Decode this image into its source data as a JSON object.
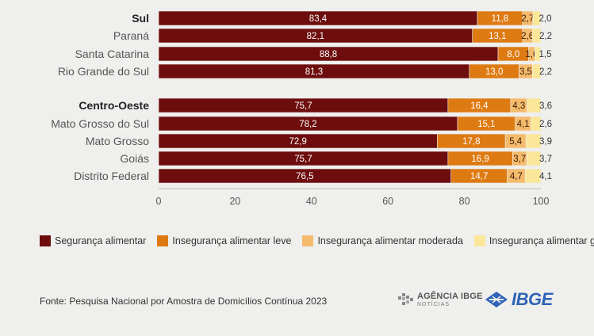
{
  "chart_data": {
    "type": "bar",
    "orientation": "horizontal",
    "stacked": true,
    "xlim": [
      0,
      100
    ],
    "xticks": [
      0,
      20,
      40,
      60,
      80,
      100
    ],
    "grid": false,
    "legend_position": "bottom",
    "series": [
      {
        "name": "Segurança alimentar",
        "color": "#6e0d0d"
      },
      {
        "name": "Insegurança alimentar leve",
        "color": "#de7a12"
      },
      {
        "name": "Insegurança alimentar moderada",
        "color": "#f5bb6d"
      },
      {
        "name": "Insegurança alimentar grave",
        "color": "#fbe79a"
      }
    ],
    "rows": [
      {
        "label": "Sul",
        "bold": true,
        "values": [
          83.4,
          11.8,
          2.7,
          2.0
        ],
        "labels": [
          "83,4",
          "11,8",
          "2,7",
          "2,0"
        ]
      },
      {
        "label": "Paraná",
        "bold": false,
        "values": [
          82.1,
          13.1,
          2.6,
          2.2
        ],
        "labels": [
          "82,1",
          "13,1",
          "2,6",
          "2,2"
        ]
      },
      {
        "label": "Santa Catarina",
        "bold": false,
        "values": [
          88.8,
          8.0,
          1.6,
          1.5
        ],
        "labels": [
          "88,8",
          "8,0",
          "1,6",
          "1,5"
        ]
      },
      {
        "label": "Rio Grande do Sul",
        "bold": false,
        "values": [
          81.3,
          13.0,
          3.5,
          2.2
        ],
        "labels": [
          "81,3",
          "13,0",
          "3,5",
          "2,2"
        ]
      },
      {
        "label": "Centro-Oeste",
        "bold": true,
        "values": [
          75.7,
          16.4,
          4.3,
          3.6
        ],
        "labels": [
          "75,7",
          "16,4",
          "4,3",
          "3,6"
        ]
      },
      {
        "label": "Mato Grosso do Sul",
        "bold": false,
        "values": [
          78.2,
          15.1,
          4.1,
          2.6
        ],
        "labels": [
          "78,2",
          "15,1",
          "4,1",
          "2,6"
        ]
      },
      {
        "label": "Mato Grosso",
        "bold": false,
        "values": [
          72.9,
          17.8,
          5.4,
          3.9
        ],
        "labels": [
          "72,9",
          "17,8",
          "5,4",
          "3,9"
        ]
      },
      {
        "label": "Goiás",
        "bold": false,
        "values": [
          75.7,
          16.9,
          3.7,
          3.7
        ],
        "labels": [
          "75,7",
          "16,9",
          "3,7",
          "3,7"
        ]
      },
      {
        "label": "Distrito Federal",
        "bold": false,
        "values": [
          76.5,
          14.7,
          4.7,
          4.1
        ],
        "labels": [
          "76,5",
          "14,7",
          "4,7",
          "4,1"
        ]
      }
    ]
  },
  "source": "Fonte: Pesquisa Nacional por Amostra de Domicílios Contínua 2023",
  "logos": {
    "agencia_title": "AGÊNCIA IBGE",
    "agencia_sub": "NOTÍCIAS",
    "ibge": "IBGE"
  }
}
